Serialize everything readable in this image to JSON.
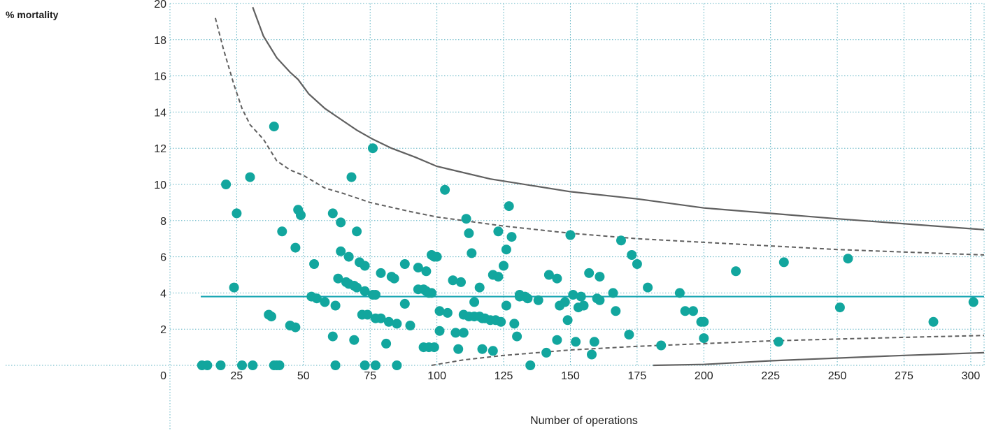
{
  "chart_data": {
    "type": "scatter",
    "ylabel": "% mortality",
    "xlabel": "Number of operations",
    "xlim": [
      0,
      305
    ],
    "ylim": [
      0,
      20
    ],
    "x_ticks": [
      0,
      25,
      50,
      75,
      100,
      125,
      150,
      175,
      200,
      225,
      250,
      275,
      300
    ],
    "y_ticks": [
      0,
      2,
      4,
      6,
      8,
      10,
      12,
      14,
      16,
      18,
      20
    ],
    "grid": true,
    "colors": {
      "points": "#12a69e",
      "reference": "#18a6b2",
      "limits": "#606060",
      "grid": "#5fb3c3"
    },
    "reference_line": {
      "y": 3.8
    },
    "series": [
      {
        "values": [
          [
            12,
            0
          ],
          [
            14,
            0
          ],
          [
            19,
            0
          ],
          [
            21,
            10
          ],
          [
            24,
            4.3
          ],
          [
            25,
            8.4
          ],
          [
            27,
            0
          ],
          [
            30,
            10.4
          ],
          [
            31,
            0
          ],
          [
            37,
            2.8
          ],
          [
            38,
            2.7
          ],
          [
            39,
            13.2
          ],
          [
            39,
            0
          ],
          [
            40,
            0
          ],
          [
            41,
            0
          ],
          [
            42,
            7.4
          ],
          [
            45,
            2.2
          ],
          [
            47,
            2.1
          ],
          [
            47,
            6.5
          ],
          [
            48,
            8.6
          ],
          [
            49,
            8.3
          ],
          [
            53,
            3.8
          ],
          [
            54,
            5.6
          ],
          [
            55,
            3.7
          ],
          [
            58,
            3.5
          ],
          [
            61,
            8.4
          ],
          [
            61,
            1.6
          ],
          [
            62,
            3.3
          ],
          [
            62,
            0
          ],
          [
            63,
            4.8
          ],
          [
            64,
            7.9
          ],
          [
            64,
            6.3
          ],
          [
            66,
            4.6
          ],
          [
            67,
            6
          ],
          [
            67,
            4.5
          ],
          [
            68,
            10.4
          ],
          [
            69,
            4.4
          ],
          [
            69,
            1.4
          ],
          [
            70,
            7.4
          ],
          [
            70,
            4.3
          ],
          [
            71,
            5.7
          ],
          [
            72,
            2.8
          ],
          [
            73,
            4.1
          ],
          [
            73,
            5.5
          ],
          [
            73,
            0
          ],
          [
            74,
            2.8
          ],
          [
            76,
            3.9
          ],
          [
            76,
            12
          ],
          [
            77,
            2.6
          ],
          [
            77,
            3.9
          ],
          [
            77,
            0
          ],
          [
            79,
            5.1
          ],
          [
            79,
            2.6
          ],
          [
            81,
            1.2
          ],
          [
            82,
            2.4
          ],
          [
            83,
            4.9
          ],
          [
            84,
            4.8
          ],
          [
            85,
            0
          ],
          [
            85,
            2.3
          ],
          [
            88,
            5.6
          ],
          [
            88,
            3.4
          ],
          [
            90,
            2.2
          ],
          [
            93,
            5.4
          ],
          [
            93,
            4.2
          ],
          [
            95,
            4.2
          ],
          [
            95,
            1
          ],
          [
            96,
            5.2
          ],
          [
            96,
            4.1
          ],
          [
            97,
            1
          ],
          [
            97,
            4
          ],
          [
            98,
            6.1
          ],
          [
            98,
            4
          ],
          [
            99,
            1
          ],
          [
            99,
            6
          ],
          [
            100,
            6
          ],
          [
            101,
            1.9
          ],
          [
            101,
            3
          ],
          [
            103,
            9.7
          ],
          [
            104,
            2.9
          ],
          [
            106,
            4.7
          ],
          [
            107,
            1.8
          ],
          [
            108,
            0.9
          ],
          [
            109,
            4.6
          ],
          [
            110,
            1.8
          ],
          [
            110,
            2.8
          ],
          [
            111,
            8.1
          ],
          [
            112,
            2.7
          ],
          [
            112,
            7.3
          ],
          [
            113,
            6.2
          ],
          [
            114,
            3.5
          ],
          [
            114,
            2.7
          ],
          [
            116,
            2.7
          ],
          [
            116,
            4.3
          ],
          [
            117,
            0.9
          ],
          [
            117,
            2.6
          ],
          [
            118,
            2.6
          ],
          [
            120,
            2.5
          ],
          [
            121,
            0.8
          ],
          [
            121,
            5
          ],
          [
            122,
            2.5
          ],
          [
            123,
            7.4
          ],
          [
            123,
            4.9
          ],
          [
            124,
            2.4
          ],
          [
            125,
            5.5
          ],
          [
            126,
            6.4
          ],
          [
            126,
            3.3
          ],
          [
            127,
            8.8
          ],
          [
            128,
            7.1
          ],
          [
            129,
            2.3
          ],
          [
            130,
            1.6
          ],
          [
            131,
            3.9
          ],
          [
            131,
            3.8
          ],
          [
            133,
            3.8
          ],
          [
            134,
            3.7
          ],
          [
            135,
            0
          ],
          [
            138,
            3.6
          ],
          [
            141,
            0.7
          ],
          [
            142,
            5
          ],
          [
            145,
            1.4
          ],
          [
            145,
            4.8
          ],
          [
            146,
            3.3
          ],
          [
            148,
            3.5
          ],
          [
            149,
            2.5
          ],
          [
            150,
            7.2
          ],
          [
            151,
            3.9
          ],
          [
            152,
            1.3
          ],
          [
            153,
            3.2
          ],
          [
            154,
            3.8
          ],
          [
            155,
            3.3
          ],
          [
            157,
            5.1
          ],
          [
            158,
            0.6
          ],
          [
            159,
            1.3
          ],
          [
            160,
            3.7
          ],
          [
            161,
            3.6
          ],
          [
            161,
            4.9
          ],
          [
            166,
            4
          ],
          [
            167,
            3
          ],
          [
            169,
            6.9
          ],
          [
            172,
            1.7
          ],
          [
            173,
            6.1
          ],
          [
            175,
            5.6
          ],
          [
            179,
            4.3
          ],
          [
            184,
            1.1
          ],
          [
            191,
            4
          ],
          [
            193,
            3
          ],
          [
            196,
            3
          ],
          [
            199,
            2.4
          ],
          [
            200,
            1.5
          ],
          [
            200,
            2.4
          ],
          [
            212,
            5.2
          ],
          [
            228,
            1.3
          ],
          [
            230,
            5.7
          ],
          [
            251,
            3.2
          ],
          [
            254,
            5.9
          ],
          [
            286,
            2.4
          ],
          [
            301,
            3.5
          ]
        ]
      },
      {
        "style": "solid",
        "role": "upper_outer_limit",
        "values": [
          [
            31,
            19.8
          ],
          [
            35,
            18.2
          ],
          [
            40,
            17
          ],
          [
            45,
            16.2
          ],
          [
            48,
            15.8
          ],
          [
            52,
            15
          ],
          [
            58,
            14.2
          ],
          [
            62,
            13.8
          ],
          [
            70,
            13
          ],
          [
            76,
            12.5
          ],
          [
            83,
            12
          ],
          [
            92,
            11.5
          ],
          [
            100,
            11
          ],
          [
            120,
            10.3
          ],
          [
            150,
            9.6
          ],
          [
            175,
            9.2
          ],
          [
            200,
            8.7
          ],
          [
            250,
            8.1
          ],
          [
            305,
            7.5
          ]
        ]
      },
      {
        "style": "dashed",
        "role": "upper_inner_limit",
        "values": [
          [
            17,
            19.2
          ],
          [
            20,
            17.5
          ],
          [
            24,
            15.5
          ],
          [
            27,
            14.2
          ],
          [
            30,
            13.3
          ],
          [
            35,
            12.5
          ],
          [
            40,
            11.3
          ],
          [
            45,
            10.8
          ],
          [
            50,
            10.5
          ],
          [
            58,
            9.8
          ],
          [
            65,
            9.5
          ],
          [
            75,
            9
          ],
          [
            90,
            8.5
          ],
          [
            100,
            8.2
          ],
          [
            125,
            7.7
          ],
          [
            150,
            7.3
          ],
          [
            175,
            7
          ],
          [
            200,
            6.8
          ],
          [
            250,
            6.4
          ],
          [
            305,
            6.1
          ]
        ]
      },
      {
        "style": "dashed",
        "role": "lower_inner_limit",
        "values": [
          [
            98,
            0
          ],
          [
            110,
            0.3
          ],
          [
            125,
            0.55
          ],
          [
            150,
            0.85
          ],
          [
            175,
            1.05
          ],
          [
            200,
            1.2
          ],
          [
            225,
            1.35
          ],
          [
            250,
            1.45
          ],
          [
            275,
            1.55
          ],
          [
            305,
            1.65
          ]
        ]
      },
      {
        "style": "solid",
        "role": "lower_outer_limit",
        "values": [
          [
            181,
            0
          ],
          [
            200,
            0.05
          ],
          [
            225,
            0.25
          ],
          [
            250,
            0.4
          ],
          [
            275,
            0.55
          ],
          [
            305,
            0.7
          ]
        ]
      }
    ]
  }
}
